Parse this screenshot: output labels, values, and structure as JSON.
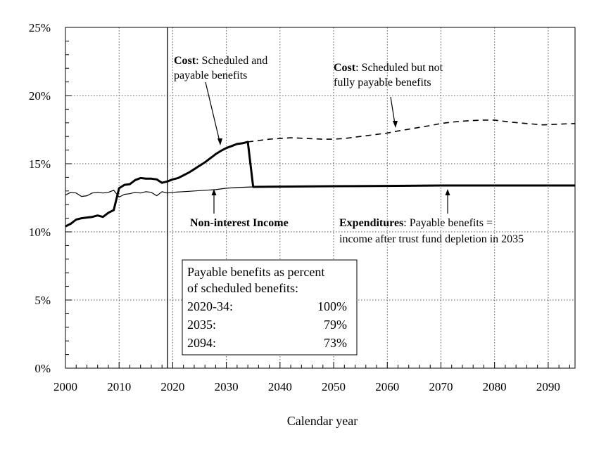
{
  "chart_data": {
    "type": "line",
    "xlabel": "Calendar year",
    "ylabel": "",
    "xlim": [
      2000,
      2095
    ],
    "ylim": [
      0,
      25
    ],
    "x_ticks": [
      "2000",
      "2010",
      "2020",
      "2030",
      "2040",
      "2050",
      "2060",
      "2070",
      "2080",
      "2090"
    ],
    "y_ticks": [
      "0%",
      "5%",
      "10%",
      "15%",
      "20%",
      "25%"
    ],
    "grid": true,
    "reference_line_x": 2019,
    "series": [
      {
        "key": "cost_payable",
        "style": "thick-solid",
        "x": [
          2000,
          2001,
          2002,
          2003,
          2004,
          2005,
          2006,
          2007,
          2008,
          2009,
          2010,
          2011,
          2012,
          2013,
          2014,
          2015,
          2016,
          2017,
          2018,
          2019,
          2020,
          2021,
          2022,
          2023,
          2024,
          2025,
          2026,
          2027,
          2028,
          2029,
          2030,
          2031,
          2032,
          2033,
          2034,
          2035,
          2040,
          2050,
          2060,
          2070,
          2080,
          2090,
          2095
        ],
        "y": [
          10.4,
          10.6,
          10.9,
          11.0,
          11.05,
          11.1,
          11.2,
          11.1,
          11.4,
          11.6,
          13.2,
          13.45,
          13.5,
          13.8,
          13.95,
          13.9,
          13.9,
          13.85,
          13.6,
          13.7,
          13.85,
          13.95,
          14.15,
          14.35,
          14.6,
          14.85,
          15.1,
          15.4,
          15.7,
          15.95,
          16.15,
          16.3,
          16.45,
          16.5,
          16.6,
          13.3,
          13.32,
          13.35,
          13.37,
          13.4,
          13.4,
          13.4,
          13.4
        ]
      },
      {
        "key": "cost_scheduled",
        "style": "dashed",
        "x": [
          2034,
          2036,
          2038,
          2040,
          2042,
          2045,
          2048,
          2050,
          2052,
          2055,
          2058,
          2060,
          2062,
          2065,
          2068,
          2070,
          2072,
          2075,
          2078,
          2080,
          2083,
          2086,
          2089,
          2092,
          2095
        ],
        "y": [
          16.6,
          16.7,
          16.8,
          16.85,
          16.9,
          16.85,
          16.8,
          16.8,
          16.85,
          17.0,
          17.15,
          17.25,
          17.4,
          17.6,
          17.8,
          17.95,
          18.05,
          18.15,
          18.2,
          18.2,
          18.05,
          17.95,
          17.85,
          17.9,
          17.95
        ]
      },
      {
        "key": "income",
        "style": "thin-solid",
        "x": [
          2000,
          2001,
          2002,
          2003,
          2004,
          2005,
          2006,
          2007,
          2008,
          2009,
          2010,
          2011,
          2012,
          2013,
          2014,
          2015,
          2016,
          2017,
          2018,
          2019,
          2020,
          2022,
          2024,
          2026,
          2028,
          2030,
          2032,
          2035,
          2040,
          2050,
          2060,
          2070,
          2080,
          2090,
          2095
        ],
        "y": [
          12.7,
          12.9,
          12.85,
          12.6,
          12.65,
          12.85,
          12.9,
          12.85,
          12.9,
          13.05,
          12.55,
          12.75,
          12.8,
          12.9,
          12.85,
          12.95,
          12.9,
          12.65,
          12.95,
          12.85,
          12.9,
          12.95,
          13.0,
          13.05,
          13.1,
          13.2,
          13.25,
          13.3,
          13.33,
          13.36,
          13.38,
          13.4,
          13.4,
          13.4,
          13.4
        ]
      }
    ],
    "annotations": {
      "cost_payable": {
        "bold": "Cost",
        "text1": ": Scheduled and",
        "text2": "payable benefits"
      },
      "cost_scheduled": {
        "bold": "Cost",
        "text1": ": Scheduled but not",
        "text2": "fully payable benefits"
      },
      "income": {
        "bold": "Non-interest Income"
      },
      "expenditures": {
        "bold": "Expenditures",
        "text1": ": Payable benefits =",
        "text2": "income after trust fund depletion in 2035"
      }
    },
    "table": {
      "title1": "Payable benefits as percent",
      "title2": "of scheduled benefits:",
      "rows": [
        {
          "period": "2020-34:",
          "value": "100%"
        },
        {
          "period": "2035:",
          "value": "79%"
        },
        {
          "period": "2094:",
          "value": "73%"
        }
      ]
    }
  }
}
